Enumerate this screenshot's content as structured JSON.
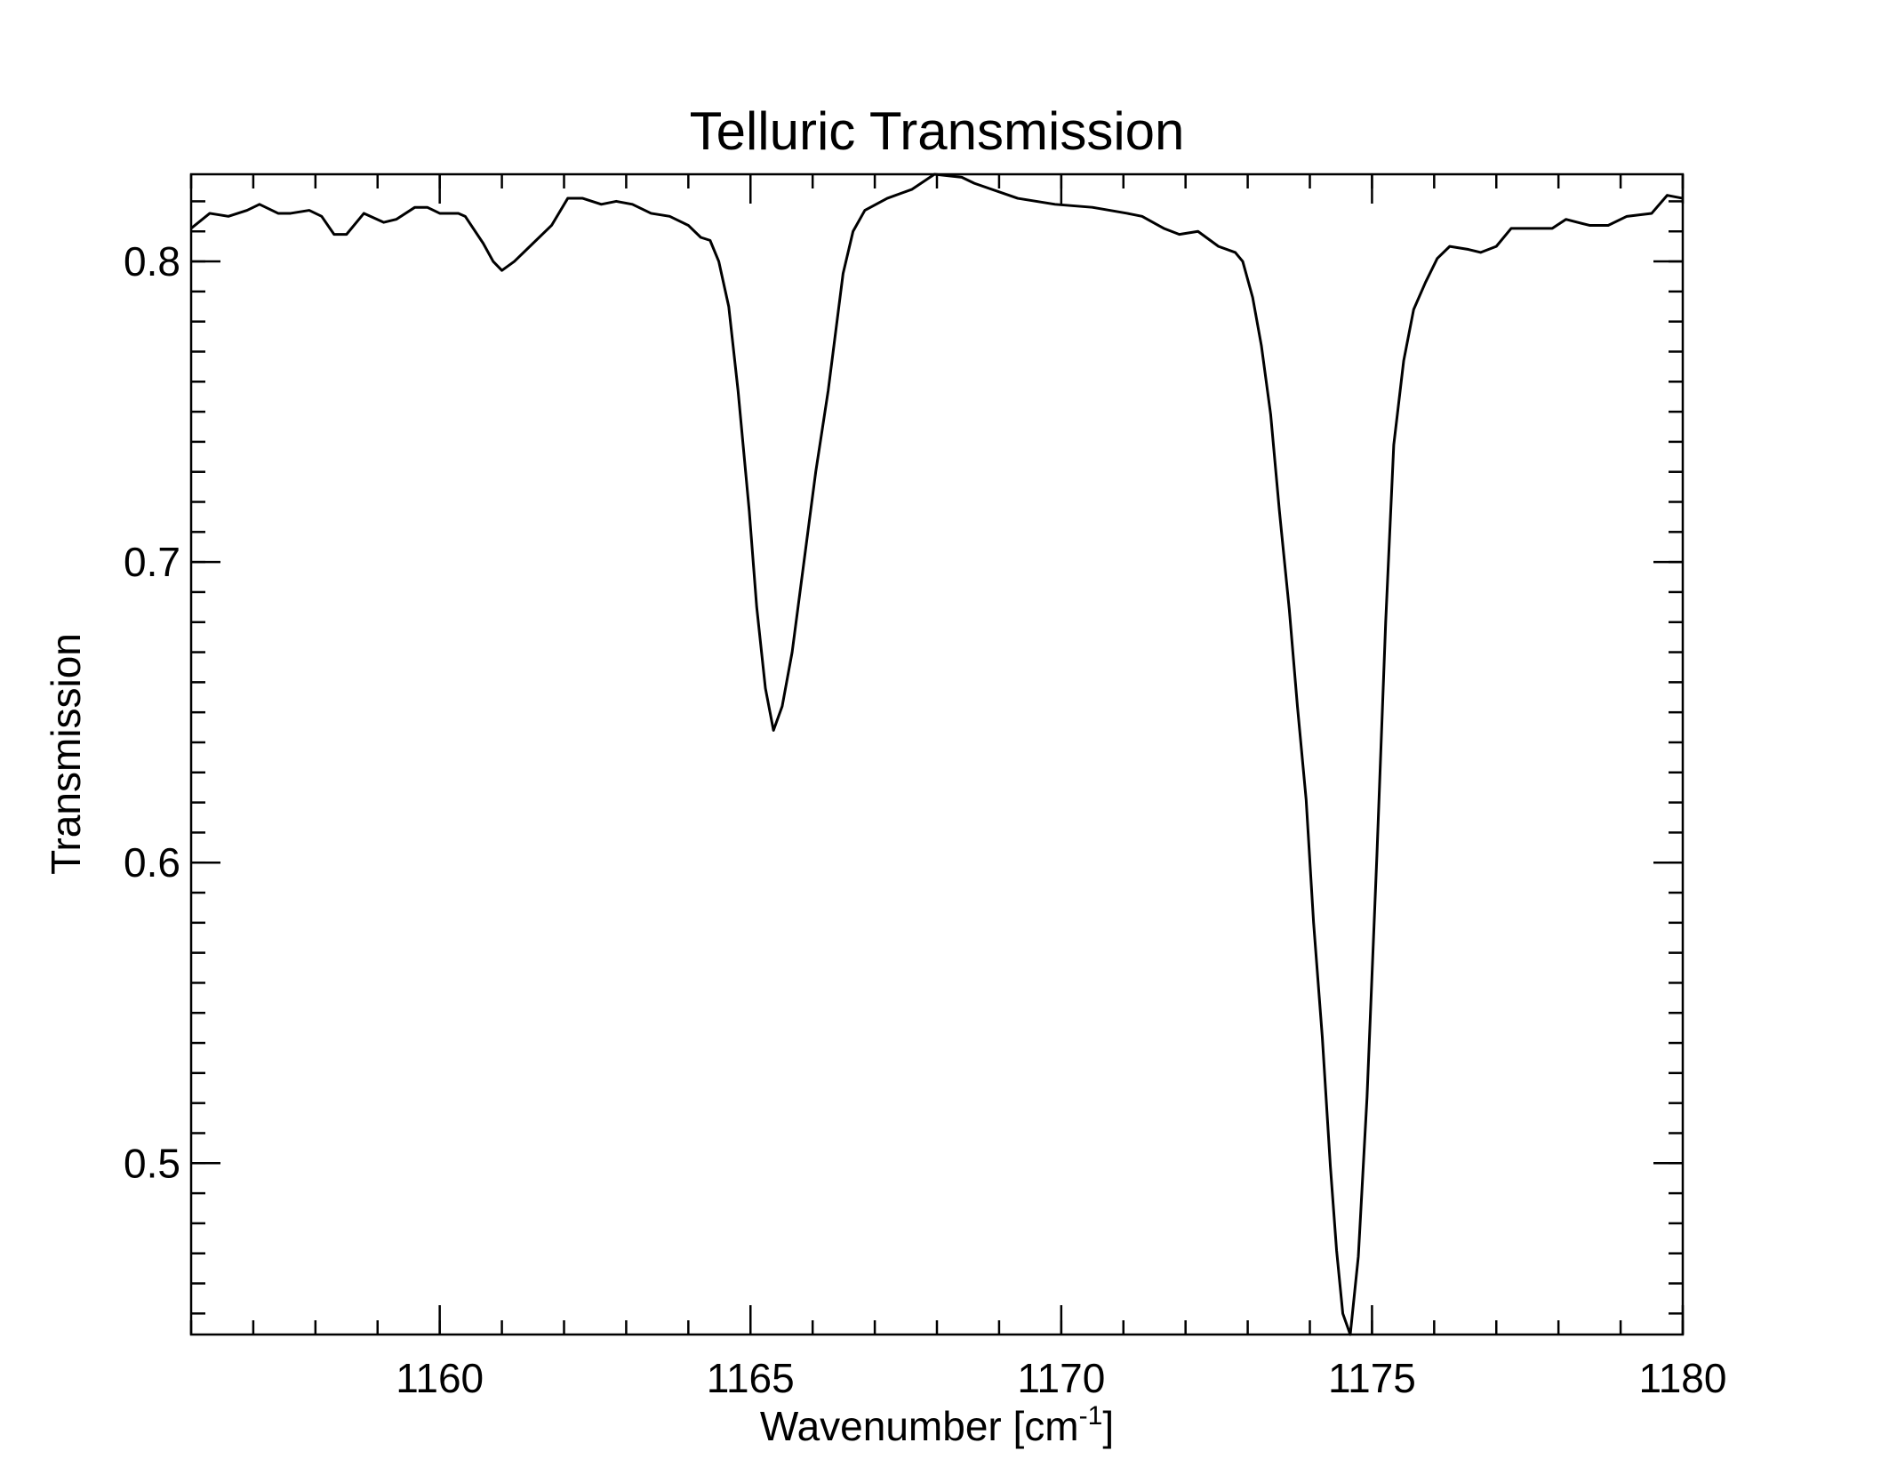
{
  "chart_data": {
    "type": "line",
    "title": "Telluric Transmission",
    "xlabel": "Wavenumber [cm",
    "xlabel_sup": "-1",
    "xlabel_end": "]",
    "ylabel": "Transmission",
    "xlim": [
      1156,
      1180
    ],
    "ylim": [
      0.443,
      0.829
    ],
    "xticks": [
      1160,
      1165,
      1170,
      1175,
      1180
    ],
    "yticks": [
      0.5,
      0.6,
      0.7,
      0.8
    ],
    "xminor_step": 1,
    "yminor_step": 0.01,
    "series": [
      {
        "color": "#000000",
        "x": [
          1156.0,
          1156.3,
          1156.6,
          1156.9,
          1157.1,
          1157.4,
          1157.6,
          1157.9,
          1158.1,
          1158.3,
          1158.5,
          1158.78,
          1159.1,
          1159.3,
          1159.6,
          1159.8,
          1160.0,
          1160.3,
          1160.41,
          1160.7,
          1160.86,
          1161.0,
          1161.2,
          1161.5,
          1161.8,
          1162.06,
          1162.3,
          1162.6,
          1162.84,
          1163.1,
          1163.4,
          1163.7,
          1164.0,
          1164.2,
          1164.35,
          1164.49,
          1164.65,
          1164.8,
          1164.98,
          1165.1,
          1165.24,
          1165.37,
          1165.51,
          1165.67,
          1165.86,
          1166.05,
          1166.25,
          1166.49,
          1166.65,
          1166.84,
          1167.2,
          1167.6,
          1167.96,
          1168.4,
          1168.6,
          1169.3,
          1169.9,
          1170.5,
          1171.06,
          1171.3,
          1171.65,
          1171.9,
          1172.2,
          1172.53,
          1172.8,
          1172.92,
          1173.08,
          1173.22,
          1173.37,
          1173.51,
          1173.67,
          1173.8,
          1173.94,
          1174.06,
          1174.2,
          1174.33,
          1174.43,
          1174.53,
          1174.65,
          1174.78,
          1174.92,
          1175.08,
          1175.22,
          1175.35,
          1175.51,
          1175.67,
          1175.86,
          1176.05,
          1176.25,
          1176.55,
          1176.75,
          1177.0,
          1177.24,
          1177.6,
          1177.9,
          1178.12,
          1178.5,
          1178.8,
          1179.1,
          1179.5,
          1179.75,
          1180.0
        ],
        "values": [
          0.811,
          0.816,
          0.815,
          0.817,
          0.819,
          0.816,
          0.816,
          0.817,
          0.815,
          0.809,
          0.809,
          0.816,
          0.813,
          0.814,
          0.818,
          0.818,
          0.816,
          0.816,
          0.815,
          0.806,
          0.8,
          0.797,
          0.8,
          0.806,
          0.812,
          0.821,
          0.821,
          0.819,
          0.82,
          0.819,
          0.816,
          0.815,
          0.812,
          0.808,
          0.807,
          0.8,
          0.785,
          0.757,
          0.717,
          0.685,
          0.658,
          0.644,
          0.652,
          0.67,
          0.7,
          0.73,
          0.757,
          0.796,
          0.81,
          0.817,
          0.821,
          0.824,
          0.829,
          0.828,
          0.826,
          0.821,
          0.819,
          0.818,
          0.816,
          0.815,
          0.811,
          0.809,
          0.81,
          0.805,
          0.803,
          0.8,
          0.788,
          0.772,
          0.749,
          0.717,
          0.684,
          0.652,
          0.621,
          0.58,
          0.542,
          0.499,
          0.471,
          0.45,
          0.443,
          0.469,
          0.522,
          0.603,
          0.68,
          0.739,
          0.767,
          0.784,
          0.793,
          0.801,
          0.805,
          0.804,
          0.803,
          0.805,
          0.811,
          0.811,
          0.811,
          0.814,
          0.812,
          0.812,
          0.815,
          0.816,
          0.822,
          0.821
        ]
      }
    ]
  }
}
